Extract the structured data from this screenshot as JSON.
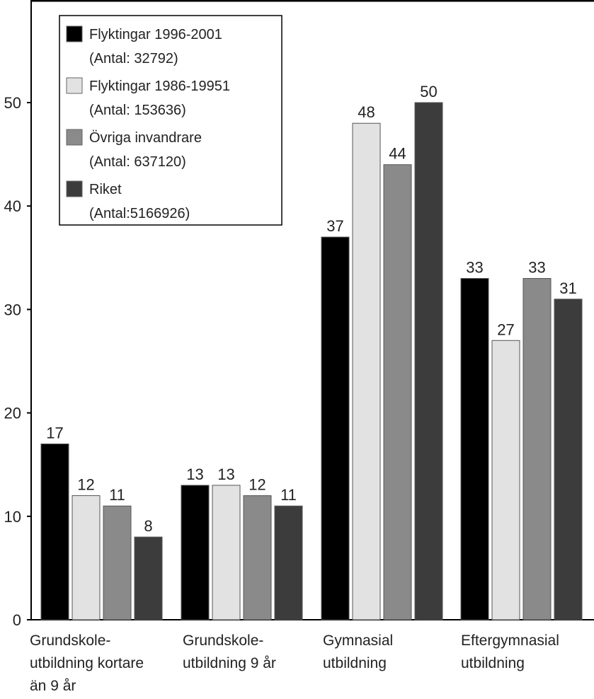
{
  "chart_data": {
    "type": "bar",
    "title": "",
    "xlabel": "",
    "ylabel": "",
    "ylim": [
      0,
      60
    ],
    "yticks": [
      "0",
      "10",
      "20",
      "30",
      "40",
      "50"
    ],
    "grid": false,
    "legend_position": "top-left",
    "categories": [
      [
        "Grundskole-",
        "utbildning kortare",
        "än 9 år"
      ],
      [
        "Grundskole-",
        "utbildning 9 år"
      ],
      [
        "Gymnasial",
        "utbildning"
      ],
      [
        "Eftergymnasial",
        "utbildning"
      ]
    ],
    "series": [
      {
        "name": [
          "Flyktingar 1996-2001",
          "(Antal: 32792)"
        ],
        "color": "#000000",
        "values": [
          17,
          13,
          37,
          33
        ]
      },
      {
        "name": [
          "Flyktingar 1986-19951",
          "(Antal: 153636)"
        ],
        "color": "#e2e2e2",
        "values": [
          12,
          13,
          48,
          27
        ]
      },
      {
        "name": [
          "Övriga invandrare",
          "(Antal: 637120)"
        ],
        "color": "#8a8a8a",
        "values": [
          11,
          12,
          44,
          33
        ]
      },
      {
        "name": [
          "Riket",
          "(Antal:5166926)"
        ],
        "color": "#3c3c3c",
        "values": [
          8,
          11,
          50,
          31
        ]
      }
    ]
  }
}
